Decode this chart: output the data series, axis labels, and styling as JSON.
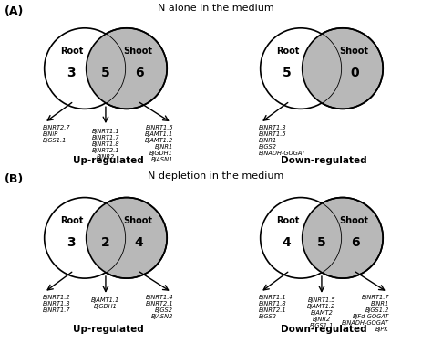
{
  "title_A": "N alone in the medium",
  "title_B": "N depletion in the medium",
  "label_A": "(A)",
  "label_B": "(B)",
  "background_color": "#ffffff",
  "gray": "#b8b8b8",
  "A_up_root": "3",
  "A_up_overlap": "5",
  "A_up_shoot": "6",
  "A_down_root": "5",
  "A_down_overlap": "",
  "A_down_shoot": "0",
  "B_up_root": "3",
  "B_up_overlap": "2",
  "B_up_shoot": "4",
  "B_down_root": "4",
  "B_down_overlap": "5",
  "B_down_shoot": "6",
  "A_up_root_genes": [
    "BjNRT2.7",
    "BjNiR",
    "BjGS1.1"
  ],
  "A_up_overlap_genes": [
    "BjNRT1.1",
    "BjNRT1.7",
    "BjNRT1.8",
    "BjNRT2.1",
    "BjNR2"
  ],
  "A_up_shoot_genes": [
    "BjNRT1.5",
    "BjAMT1.1",
    "BjAMT1.2",
    "BjNR1",
    "BjGDH1",
    "BjASN1"
  ],
  "A_down_root_genes": [
    "BjNRT1.3",
    "BjNRT1.5",
    "BjNR1",
    "BjGS2",
    "BjNADH-GOGAT"
  ],
  "A_down_overlap_genes": [],
  "A_down_shoot_genes": [],
  "B_up_root_genes": [
    "BjNRT1.2",
    "BjNRT1.3",
    "BjNRT1.7"
  ],
  "B_up_overlap_genes": [
    "BjAMT1.1",
    "BjGDH1"
  ],
  "B_up_shoot_genes": [
    "BjNRT1.4",
    "BjNRT2.1",
    "BjGS2",
    "BjASN2"
  ],
  "B_down_root_genes": [
    "BjNRT1.1",
    "BjNRT1.8",
    "BjNRT2.1",
    "BjGS2"
  ],
  "B_down_overlap_genes": [
    "BjNRT1.5",
    "BjAMT1.2",
    "BjAMT2",
    "BjNR2",
    "BjGS1.1"
  ],
  "B_down_shoot_genes": [
    "BjNRT1.7",
    "BjNR1",
    "BjGS1.2",
    "BjFd-GOGAT",
    "BjNADH-GOGAT",
    "BjPK"
  ],
  "label_upregulated": "Up-regulated",
  "label_downregulated": "Down-regulated"
}
